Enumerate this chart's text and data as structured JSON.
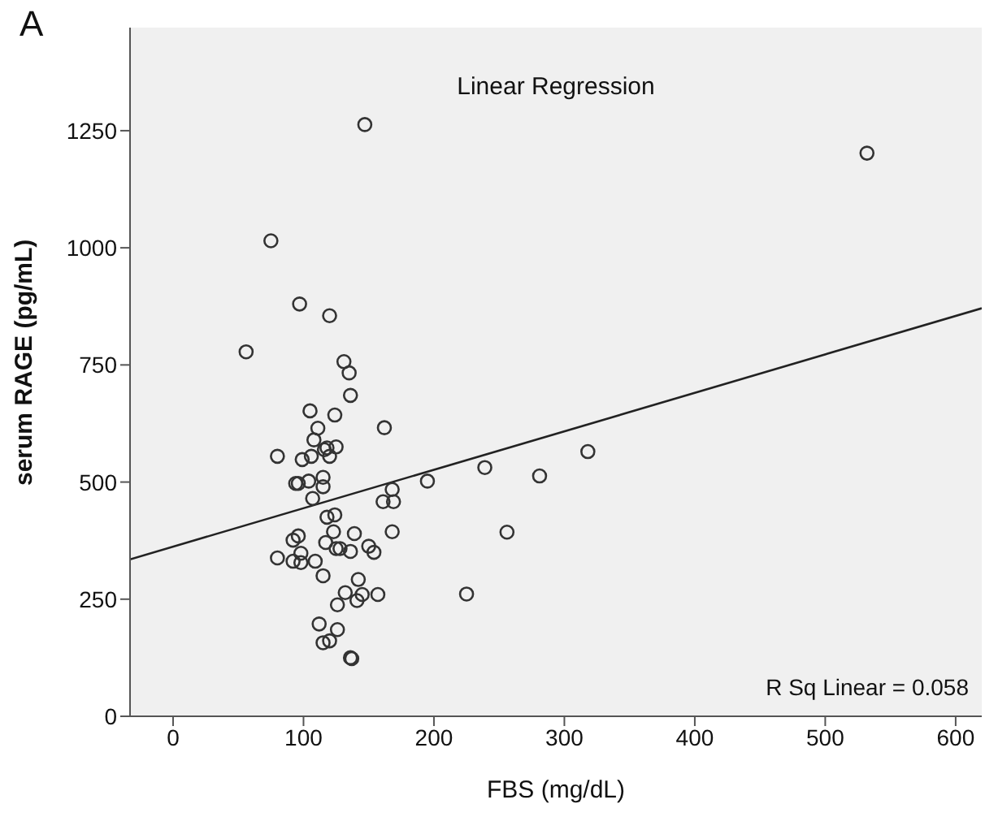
{
  "chart_data": {
    "type": "scatter",
    "title": "Linear Regression",
    "xlabel": "FBS (mg/dL)",
    "ylabel": "serum RAGE (pg/mL)",
    "annotations": [
      "A",
      "R Sq Linear = 0.058"
    ],
    "xlim": [
      -33,
      620
    ],
    "ylim": [
      0,
      1470
    ],
    "xticks": [
      0,
      100,
      200,
      300,
      400,
      500,
      600
    ],
    "yticks": [
      0,
      250,
      500,
      750,
      1000,
      1250
    ],
    "series": [
      {
        "type": "scatter",
        "color": "#333333",
        "marker": "circle",
        "x": [
          147,
          532,
          75,
          97,
          120,
          56,
          131,
          135,
          136,
          105,
          124,
          162,
          111,
          108,
          80,
          99,
          106,
          120,
          116,
          118,
          125,
          94,
          96,
          104,
          115,
          115,
          107,
          168,
          161,
          169,
          195,
          239,
          281,
          318,
          118,
          124,
          123,
          139,
          168,
          256,
          92,
          96,
          117,
          125,
          128,
          136,
          150,
          154,
          80,
          92,
          98,
          98,
          109,
          115,
          142,
          132,
          145,
          157,
          141,
          126,
          225,
          112,
          126,
          115,
          120,
          136,
          137
        ],
        "values": [
          1263,
          1202,
          1015,
          880,
          855,
          778,
          757,
          733,
          685,
          652,
          643,
          616,
          615,
          590,
          555,
          548,
          555,
          555,
          569,
          573,
          575,
          497,
          497,
          502,
          510,
          490,
          465,
          484,
          458,
          458,
          502,
          531,
          513,
          565,
          425,
          430,
          394,
          390,
          394,
          393,
          376,
          385,
          371,
          358,
          358,
          352,
          363,
          350,
          338,
          331,
          348,
          328,
          331,
          300,
          292,
          264,
          260,
          260,
          247,
          238,
          261,
          197,
          185,
          157,
          161,
          125,
          123
        ]
      },
      {
        "type": "line",
        "color": "#222222",
        "marker": "none",
        "line_style": "solid",
        "x": [
          -33,
          620
        ],
        "values": [
          335,
          871
        ]
      }
    ]
  }
}
